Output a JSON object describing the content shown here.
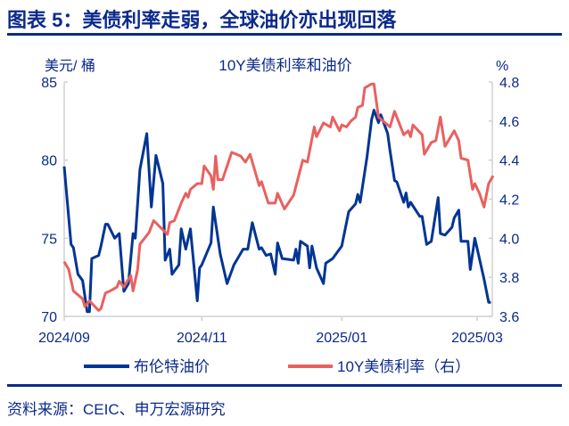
{
  "header": {
    "title": "图表 5：美债利率走弱，全球油价亦出现回落"
  },
  "footer": {
    "source": "资料来源：CEIC、申万宏源研究"
  },
  "chart_data": {
    "type": "line",
    "title": "10Y美债利率和油价",
    "ylabel_left": "美元/ 桶",
    "ylabel_right": "%",
    "ylim_left": [
      70,
      85
    ],
    "ylim_right": [
      3.6,
      4.8
    ],
    "yticks_left": [
      "70",
      "75",
      "80",
      "85"
    ],
    "yticks_right": [
      "3.6",
      "3.8",
      "4.0",
      "4.2",
      "4.4",
      "4.6",
      "4.8"
    ],
    "xlim": [
      "2024-09-02",
      "2025-03-08"
    ],
    "xticks": [
      {
        "date": "2024-09-02",
        "label": "2024/09"
      },
      {
        "date": "2024-11-01",
        "label": "2024/11"
      },
      {
        "date": "2025-01-01",
        "label": "2025/01"
      },
      {
        "date": "2025-03-01",
        "label": "2025/03"
      }
    ],
    "grid": false,
    "legend_placement": "bottom",
    "colors": {
      "brent": "#003594",
      "yield": "#e8615f",
      "text": "#0b2a8a",
      "axis": "#d0d0d0"
    },
    "series": [
      {
        "name": "布伦特油价",
        "axis": "left",
        "color": "#003594",
        "points": [
          [
            "2024-09-02",
            79.6
          ],
          [
            "2024-09-03",
            77.9
          ],
          [
            "2024-09-05",
            74.6
          ],
          [
            "2024-09-06",
            74.4
          ],
          [
            "2024-09-08",
            72.7
          ],
          [
            "2024-09-10",
            72.3
          ],
          [
            "2024-09-12",
            70.3
          ],
          [
            "2024-09-13",
            70.3
          ],
          [
            "2024-09-14",
            73.7
          ],
          [
            "2024-09-17",
            73.9
          ],
          [
            "2024-09-18",
            74.5
          ],
          [
            "2024-09-20",
            75.9
          ],
          [
            "2024-09-21",
            75.9
          ],
          [
            "2024-09-24",
            75.0
          ],
          [
            "2024-09-26",
            75.3
          ],
          [
            "2024-09-28",
            71.6
          ],
          [
            "2024-09-30",
            72.1
          ],
          [
            "2024-10-02",
            75.3
          ],
          [
            "2024-10-03",
            75.0
          ],
          [
            "2024-10-05",
            79.4
          ],
          [
            "2024-10-08",
            81.7
          ],
          [
            "2024-10-10",
            77.0
          ],
          [
            "2024-10-12",
            80.3
          ],
          [
            "2024-10-15",
            78.5
          ],
          [
            "2024-10-16",
            73.6
          ],
          [
            "2024-10-18",
            74.3
          ],
          [
            "2024-10-19",
            72.7
          ],
          [
            "2024-10-22",
            73.3
          ],
          [
            "2024-10-23",
            75.6
          ],
          [
            "2024-10-25",
            74.3
          ],
          [
            "2024-10-27",
            75.6
          ],
          [
            "2024-10-30",
            71.0
          ],
          [
            "2024-10-31",
            73.1
          ],
          [
            "2024-11-01",
            73.3
          ],
          [
            "2024-11-05",
            74.7
          ],
          [
            "2024-11-06",
            77.0
          ],
          [
            "2024-11-09",
            74.0
          ],
          [
            "2024-11-12",
            72.1
          ],
          [
            "2024-11-15",
            73.3
          ],
          [
            "2024-11-19",
            74.3
          ],
          [
            "2024-11-21",
            74.3
          ],
          [
            "2024-11-23",
            76.0
          ],
          [
            "2024-11-26",
            74.3
          ],
          [
            "2024-11-27",
            74.4
          ],
          [
            "2024-11-29",
            73.9
          ],
          [
            "2024-12-01",
            74.0
          ],
          [
            "2024-12-03",
            72.7
          ],
          [
            "2024-12-04",
            74.7
          ],
          [
            "2024-12-06",
            73.7
          ],
          [
            "2024-12-11",
            73.6
          ],
          [
            "2024-12-12",
            74.3
          ],
          [
            "2024-12-13",
            73.4
          ],
          [
            "2024-12-14",
            74.8
          ],
          [
            "2024-12-17",
            74.5
          ],
          [
            "2024-12-18",
            73.1
          ],
          [
            "2024-12-19",
            74.5
          ],
          [
            "2024-12-21",
            73.1
          ],
          [
            "2024-12-24",
            72.1
          ],
          [
            "2024-12-25",
            73.4
          ],
          [
            "2024-12-28",
            73.7
          ],
          [
            "2025-01-01",
            74.5
          ],
          [
            "2025-01-04",
            76.7
          ],
          [
            "2025-01-07",
            77.2
          ],
          [
            "2025-01-08",
            77.8
          ],
          [
            "2025-01-09",
            77.3
          ],
          [
            "2025-01-12",
            80.2
          ],
          [
            "2025-01-14",
            82.6
          ],
          [
            "2025-01-15",
            83.2
          ],
          [
            "2025-01-17",
            82.4
          ],
          [
            "2025-01-18",
            82.9
          ],
          [
            "2025-01-21",
            81.7
          ],
          [
            "2025-01-22",
            80.6
          ],
          [
            "2025-01-24",
            78.7
          ],
          [
            "2025-01-25",
            78.6
          ],
          [
            "2025-01-28",
            77.3
          ],
          [
            "2025-01-29",
            77.9
          ],
          [
            "2025-01-30",
            77.0
          ],
          [
            "2025-01-31",
            77.3
          ],
          [
            "2025-02-04",
            76.4
          ],
          [
            "2025-02-05",
            76.4
          ],
          [
            "2025-02-07",
            74.6
          ],
          [
            "2025-02-09",
            74.8
          ],
          [
            "2025-02-12",
            77.6
          ],
          [
            "2025-02-13",
            75.3
          ],
          [
            "2025-02-15",
            75.2
          ],
          [
            "2025-02-18",
            75.7
          ],
          [
            "2025-02-19",
            76.3
          ],
          [
            "2025-02-21",
            76.8
          ],
          [
            "2025-02-22",
            74.8
          ],
          [
            "2025-02-25",
            74.8
          ],
          [
            "2025-02-26",
            73.0
          ],
          [
            "2025-02-28",
            75.0
          ],
          [
            "2025-03-04",
            72.4
          ],
          [
            "2025-03-06",
            70.9
          ],
          [
            "2025-03-07",
            70.9
          ]
        ]
      },
      {
        "name": "10Y美债利率（右）",
        "axis": "right",
        "color": "#e8615f",
        "points": [
          [
            "2024-09-02",
            3.88
          ],
          [
            "2024-09-04",
            3.84
          ],
          [
            "2024-09-06",
            3.73
          ],
          [
            "2024-09-10",
            3.69
          ],
          [
            "2024-09-11",
            3.65
          ],
          [
            "2024-09-13",
            3.68
          ],
          [
            "2024-09-17",
            3.63
          ],
          [
            "2024-09-18",
            3.64
          ],
          [
            "2024-09-20",
            3.72
          ],
          [
            "2024-09-22",
            3.73
          ],
          [
            "2024-09-25",
            3.75
          ],
          [
            "2024-09-26",
            3.78
          ],
          [
            "2024-09-28",
            3.75
          ],
          [
            "2024-10-01",
            3.81
          ],
          [
            "2024-10-02",
            3.73
          ],
          [
            "2024-10-04",
            3.84
          ],
          [
            "2024-10-05",
            3.97
          ],
          [
            "2024-10-09",
            4.03
          ],
          [
            "2024-10-11",
            4.09
          ],
          [
            "2024-10-17",
            4.02
          ],
          [
            "2024-10-18",
            4.08
          ],
          [
            "2024-10-20",
            4.09
          ],
          [
            "2024-10-23",
            4.18
          ],
          [
            "2024-10-25",
            4.23
          ],
          [
            "2024-10-26",
            4.21
          ],
          [
            "2024-10-27",
            4.25
          ],
          [
            "2024-10-30",
            4.28
          ],
          [
            "2024-11-01",
            4.28
          ],
          [
            "2024-11-02",
            4.37
          ],
          [
            "2024-11-05",
            4.32
          ],
          [
            "2024-11-06",
            4.25
          ],
          [
            "2024-11-07",
            4.42
          ],
          [
            "2024-11-08",
            4.3
          ],
          [
            "2024-11-10",
            4.3
          ],
          [
            "2024-11-14",
            4.44
          ],
          [
            "2024-11-18",
            4.42
          ],
          [
            "2024-11-20",
            4.39
          ],
          [
            "2024-11-22",
            4.43
          ],
          [
            "2024-11-26",
            4.27
          ],
          [
            "2024-11-27",
            4.29
          ],
          [
            "2024-11-30",
            4.18
          ],
          [
            "2024-12-03",
            4.18
          ],
          [
            "2024-12-04",
            4.23
          ],
          [
            "2024-12-07",
            4.15
          ],
          [
            "2024-12-11",
            4.22
          ],
          [
            "2024-12-15",
            4.4
          ],
          [
            "2024-12-17",
            4.39
          ],
          [
            "2024-12-20",
            4.57
          ],
          [
            "2024-12-21",
            4.52
          ],
          [
            "2024-12-24",
            4.59
          ],
          [
            "2024-12-27",
            4.57
          ],
          [
            "2024-12-28",
            4.62
          ],
          [
            "2024-12-31",
            4.55
          ],
          [
            "2025-01-01",
            4.58
          ],
          [
            "2025-01-03",
            4.57
          ],
          [
            "2025-01-05",
            4.6
          ],
          [
            "2025-01-07",
            4.62
          ],
          [
            "2025-01-08",
            4.67
          ],
          [
            "2025-01-10",
            4.68
          ],
          [
            "2025-01-11",
            4.77
          ],
          [
            "2025-01-14",
            4.79
          ],
          [
            "2025-01-15",
            4.79
          ],
          [
            "2025-01-17",
            4.62
          ],
          [
            "2025-01-22",
            4.57
          ],
          [
            "2025-01-24",
            4.65
          ],
          [
            "2025-01-28",
            4.53
          ],
          [
            "2025-01-30",
            4.55
          ],
          [
            "2025-01-31",
            4.52
          ],
          [
            "2025-02-01",
            4.58
          ],
          [
            "2025-02-05",
            4.53
          ],
          [
            "2025-02-06",
            4.43
          ],
          [
            "2025-02-09",
            4.49
          ],
          [
            "2025-02-11",
            4.5
          ],
          [
            "2025-02-13",
            4.62
          ],
          [
            "2025-02-15",
            4.47
          ],
          [
            "2025-02-19",
            4.55
          ],
          [
            "2025-02-21",
            4.5
          ],
          [
            "2025-02-22",
            4.41
          ],
          [
            "2025-02-25",
            4.4
          ],
          [
            "2025-02-27",
            4.25
          ],
          [
            "2025-02-28",
            4.28
          ],
          [
            "2025-03-02",
            4.23
          ],
          [
            "2025-03-04",
            4.16
          ],
          [
            "2025-03-06",
            4.28
          ],
          [
            "2025-03-08",
            4.32
          ]
        ]
      }
    ]
  }
}
